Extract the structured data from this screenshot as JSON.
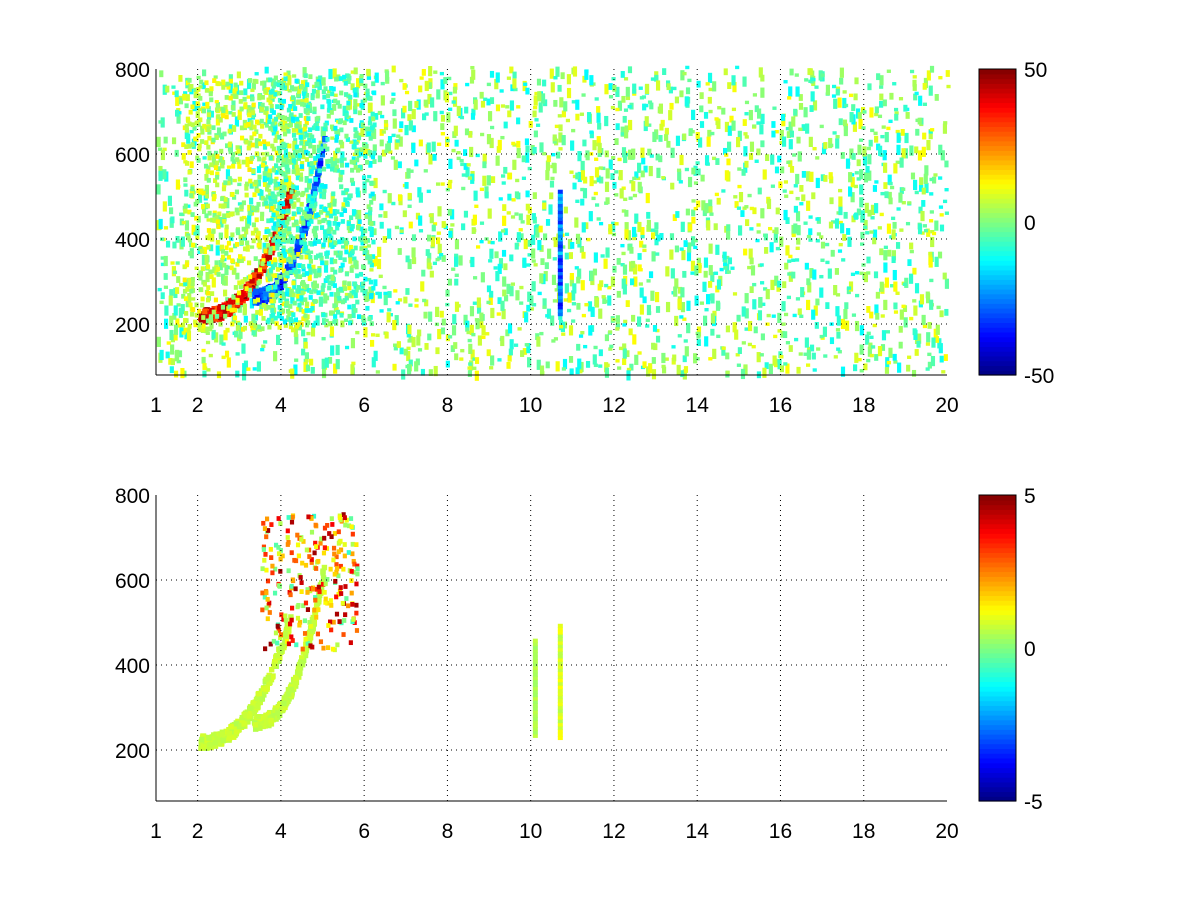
{
  "chart_data": [
    {
      "type": "heatmap",
      "title": "",
      "xlabel": "",
      "ylabel": "",
      "xlim": [
        1,
        20
      ],
      "ylim": [
        80,
        800
      ],
      "xticks": [
        1,
        2,
        4,
        6,
        8,
        10,
        12,
        14,
        16,
        18,
        20
      ],
      "yticks": [
        200,
        400,
        600,
        800
      ],
      "grid": true,
      "colormap": "jet",
      "colorbar": {
        "clim": [
          -50,
          50
        ],
        "ticks": [
          -50,
          0,
          50
        ]
      },
      "features": [
        {
          "shape": "arc",
          "x_start": 2.0,
          "x_end": 4.2,
          "y_start": 225,
          "y_end": 520,
          "value": 45
        },
        {
          "shape": "arc",
          "x_start": 3.3,
          "x_end": 5.0,
          "y_start": 270,
          "y_end": 640,
          "value": -35
        },
        {
          "shape": "band",
          "x_start": 1.6,
          "x_end": 4.6,
          "y_start": 190,
          "y_end": 780,
          "value": 12
        },
        {
          "shape": "band",
          "x_start": 3.6,
          "x_end": 6.2,
          "y_start": 200,
          "y_end": 790,
          "value": -12
        },
        {
          "shape": "streak",
          "x": 10.7,
          "y_start": 220,
          "y_end": 510,
          "value": -30
        }
      ]
    },
    {
      "type": "heatmap",
      "title": "",
      "xlabel": "",
      "ylabel": "",
      "xlim": [
        1,
        20
      ],
      "ylim": [
        80,
        800
      ],
      "xticks": [
        1,
        2,
        4,
        6,
        8,
        10,
        12,
        14,
        16,
        18,
        20
      ],
      "yticks": [
        200,
        400,
        600,
        800
      ],
      "grid": true,
      "colormap": "jet",
      "colorbar": {
        "clim": [
          -5,
          5
        ],
        "ticks": [
          -5,
          0,
          5
        ]
      },
      "features": [
        {
          "shape": "arc",
          "x_start": 2.0,
          "x_end": 4.2,
          "y_start": 225,
          "y_end": 520,
          "value": 0.8
        },
        {
          "shape": "arc",
          "x_start": 3.3,
          "x_end": 5.0,
          "y_start": 270,
          "y_end": 640,
          "value": 0.8
        },
        {
          "shape": "blob",
          "x_start": 3.5,
          "x_end": 5.8,
          "y_start": 440,
          "y_end": 760,
          "value": 4
        },
        {
          "shape": "streak",
          "x": 10.7,
          "y_start": 225,
          "y_end": 490,
          "value": 1
        },
        {
          "shape": "streak",
          "x": 10.1,
          "y_start": 230,
          "y_end": 460,
          "value": 0.5
        }
      ]
    }
  ]
}
